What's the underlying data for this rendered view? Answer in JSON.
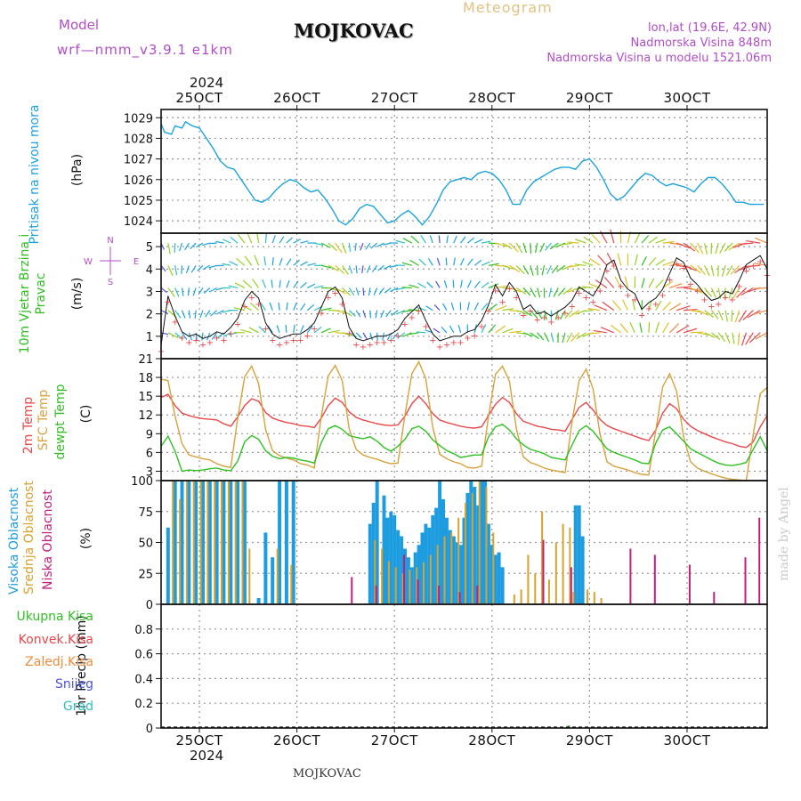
{
  "header": {
    "model_label": "Model",
    "model_name": "wrf—nmm_v3.9.1  e1km",
    "station": "MOJKOVAC",
    "meteogram": "Meteogram",
    "lonlat": "lon,lat (19.6E, 42.9N)",
    "elevation": "Nadmorska Visina 848m",
    "model_elevation": "Nadmorska Visina u modelu 1521.06m",
    "year_top": "2024",
    "year_bottom": "2024",
    "footer_station": "MOJKOVAC",
    "watermark": "made by Angel"
  },
  "colors": {
    "pressure": "#1ca3e0",
    "temp2m": "#e8484a",
    "sfc": "#d9a13c",
    "dewpt": "#2fc022",
    "high_cloud": "#1e9ce0",
    "mid_cloud": "#d8a22e",
    "low_cloud": "#c0207c",
    "label_purple": "#b04ec8",
    "total_precip": "#2fc022"
  },
  "x_axis": {
    "days": [
      "25OCT",
      "26OCT",
      "27OCT",
      "28OCT",
      "29OCT",
      "30OCT"
    ],
    "range_hours": [
      0,
      174
    ]
  },
  "chart_data": [
    {
      "type": "line",
      "panel": "pressure",
      "ylabel_side": "Pritisak na nivou mora",
      "ylabel": "(hPa)",
      "ylim": [
        1023.4,
        1029.4
      ],
      "yticks": [
        1024,
        1025,
        1026,
        1027,
        1028,
        1029
      ],
      "grid": true,
      "series": [
        {
          "name": "Pritisak na nivou mora",
          "x": [
            0,
            1,
            3,
            4,
            6,
            7,
            9,
            11,
            13,
            15,
            17,
            19,
            21,
            23,
            25,
            27,
            29,
            31,
            33,
            35,
            37,
            39,
            41,
            43,
            45,
            47,
            49,
            51,
            53,
            55,
            57,
            59,
            61,
            63,
            65,
            67,
            69,
            71,
            73,
            75,
            77,
            79,
            81,
            83,
            85,
            87,
            89,
            91,
            93,
            95,
            97,
            99,
            101,
            103,
            105,
            107,
            109,
            111,
            113,
            115,
            117,
            119,
            121,
            123,
            125,
            127,
            129,
            131,
            133,
            135,
            137,
            139,
            141,
            143,
            145,
            147,
            149,
            151,
            153,
            155,
            157,
            159,
            161,
            163,
            165,
            167,
            169,
            171,
            173
          ],
          "y": [
            1028.7,
            1028.3,
            1028.2,
            1028.6,
            1028.5,
            1028.8,
            1028.6,
            1028.5,
            1028.0,
            1027.5,
            1026.9,
            1026.6,
            1026.5,
            1026.0,
            1025.5,
            1025.0,
            1024.9,
            1025.1,
            1025.5,
            1025.8,
            1026.0,
            1025.9,
            1025.6,
            1025.4,
            1025.5,
            1025.1,
            1024.6,
            1024.0,
            1023.8,
            1024.1,
            1024.6,
            1024.8,
            1024.7,
            1024.3,
            1023.9,
            1024.0,
            1024.3,
            1024.5,
            1024.2,
            1023.8,
            1024.2,
            1024.8,
            1025.5,
            1025.9,
            1026.0,
            1026.1,
            1026.0,
            1026.3,
            1026.4,
            1026.3,
            1026.0,
            1025.5,
            1024.8,
            1024.8,
            1025.5,
            1025.9,
            1026.1,
            1026.3,
            1026.5,
            1026.6,
            1026.6,
            1026.5,
            1026.9,
            1027.0,
            1026.6,
            1026.0,
            1025.3,
            1025.0,
            1025.2,
            1025.6,
            1026.0,
            1026.3,
            1026.2,
            1025.9,
            1025.7,
            1025.8,
            1025.7,
            1025.6,
            1025.4,
            1025.8,
            1026.1,
            1026.1,
            1025.8,
            1025.4,
            1024.9,
            1024.9,
            1024.8,
            1024.8,
            1024.8
          ]
        }
      ]
    },
    {
      "type": "line",
      "panel": "wind",
      "ylabel_side": "10m Vjetar Brzina i Pravac",
      "ylabel": "(m/s)",
      "compass": {
        "n": "N",
        "s": "S",
        "w": "W",
        "e": "E"
      },
      "ylim": [
        0,
        5.6
      ],
      "yticks": [
        1,
        2,
        3,
        4,
        5
      ],
      "grid": true,
      "series": [
        {
          "name": "Brzina",
          "x": [
            0,
            2,
            4,
            6,
            8,
            10,
            12,
            14,
            16,
            18,
            20,
            22,
            24,
            26,
            28,
            30,
            32,
            34,
            36,
            38,
            40,
            42,
            44,
            46,
            48,
            50,
            52,
            54,
            56,
            58,
            60,
            62,
            64,
            66,
            68,
            70,
            72,
            74,
            76,
            78,
            80,
            82,
            84,
            86,
            88,
            90,
            92,
            94,
            96,
            98,
            100,
            102,
            104,
            106,
            108,
            110,
            112,
            114,
            116,
            118,
            120,
            122,
            124,
            126,
            128,
            130,
            132,
            134,
            136,
            138,
            140,
            142,
            144,
            146,
            148,
            150,
            152,
            154,
            156,
            158,
            160,
            162,
            164,
            166,
            168,
            170,
            172,
            174
          ],
          "y": [
            0.6,
            2.8,
            1.9,
            1.2,
            1.0,
            1.1,
            0.9,
            1.0,
            1.2,
            1.1,
            1.4,
            1.8,
            2.6,
            3.0,
            2.7,
            1.6,
            1.1,
            0.9,
            1.0,
            1.1,
            1.1,
            1.3,
            1.6,
            2.3,
            3.0,
            3.2,
            2.7,
            1.4,
            0.9,
            0.8,
            0.9,
            1.0,
            1.0,
            1.1,
            1.3,
            1.8,
            2.1,
            2.4,
            1.7,
            1.1,
            0.8,
            0.9,
            1.0,
            1.0,
            1.2,
            1.3,
            1.7,
            2.4,
            3.3,
            2.8,
            3.4,
            3.0,
            2.2,
            2.4,
            2.0,
            2.1,
            1.9,
            2.1,
            2.3,
            2.6,
            3.2,
            3.0,
            2.8,
            3.3,
            4.2,
            4.4,
            3.5,
            3.1,
            2.9,
            2.2,
            2.5,
            2.7,
            3.1,
            3.8,
            4.5,
            4.3,
            3.6,
            3.3,
            2.9,
            2.6,
            2.7,
            3.0,
            2.9,
            3.5,
            4.2,
            4.4,
            4.6,
            4.0
          ]
        }
      ]
    },
    {
      "type": "line",
      "panel": "temperature",
      "ylabel_side": [
        "2m Temp",
        "SFC Temp",
        "dewpt Temp"
      ],
      "ylabel": "(C)",
      "ylim": [
        1.5,
        21
      ],
      "yticks": [
        3,
        6,
        9,
        12,
        15,
        18,
        21
      ],
      "grid": true,
      "x": [
        0,
        2,
        4,
        6,
        8,
        10,
        12,
        14,
        16,
        18,
        20,
        22,
        24,
        26,
        28,
        30,
        32,
        34,
        36,
        38,
        40,
        42,
        44,
        46,
        48,
        50,
        52,
        54,
        56,
        58,
        60,
        62,
        64,
        66,
        68,
        70,
        72,
        74,
        76,
        78,
        80,
        82,
        84,
        86,
        88,
        90,
        92,
        94,
        96,
        98,
        100,
        102,
        104,
        106,
        108,
        110,
        112,
        114,
        116,
        118,
        120,
        122,
        124,
        126,
        128,
        130,
        132,
        134,
        136,
        138,
        140,
        142,
        144,
        146,
        148,
        150,
        152,
        154,
        156,
        158,
        160,
        162,
        164,
        166,
        168,
        170,
        172,
        174
      ],
      "series": [
        {
          "name": "2m Temp",
          "values": [
            14.8,
            15.3,
            13.5,
            12.3,
            11.9,
            11.6,
            11.4,
            11.3,
            11.2,
            10.6,
            10.2,
            11.7,
            13.5,
            14.6,
            14.2,
            12.4,
            11.5,
            11.1,
            10.8,
            10.6,
            10.3,
            10.2,
            10.0,
            11.5,
            13.5,
            14.7,
            14.0,
            12.5,
            11.6,
            11.2,
            10.9,
            10.6,
            10.4,
            10.3,
            10.4,
            11.8,
            13.8,
            15.0,
            13.8,
            12.2,
            11.2,
            10.8,
            10.5,
            10.2,
            10.0,
            9.9,
            10.1,
            11.9,
            13.7,
            14.8,
            14.0,
            12.2,
            11.0,
            10.6,
            10.2,
            10.0,
            9.7,
            9.6,
            9.4,
            11.3,
            13.2,
            14.0,
            12.8,
            11.3,
            10.3,
            9.8,
            9.4,
            9.0,
            8.6,
            8.2,
            7.9,
            9.6,
            12.3,
            13.8,
            13.0,
            11.3,
            10.2,
            9.5,
            9.0,
            8.5,
            8.1,
            7.7,
            7.4,
            7.0,
            6.8,
            7.7,
            10.1,
            11.9
          ]
        },
        {
          "name": "SFC Temp",
          "values": [
            17.7,
            17.5,
            11.8,
            7.4,
            5.6,
            5.3,
            5.0,
            4.8,
            4.2,
            3.8,
            3.6,
            11.5,
            18.1,
            19.8,
            17.0,
            9.7,
            6.3,
            5.5,
            5.1,
            4.8,
            4.2,
            4.0,
            3.5,
            11.8,
            18.3,
            19.9,
            17.5,
            9.8,
            6.5,
            5.6,
            5.2,
            4.9,
            4.5,
            4.2,
            4.3,
            12.0,
            18.6,
            20.5,
            17.8,
            10.0,
            5.7,
            5.0,
            4.5,
            4.2,
            3.6,
            3.5,
            3.8,
            11.8,
            18.5,
            19.8,
            17.4,
            9.8,
            5.3,
            4.4,
            4.0,
            3.5,
            3.2,
            3.0,
            2.8,
            11.0,
            17.5,
            19.3,
            16.2,
            9.0,
            4.5,
            3.8,
            3.5,
            3.2,
            2.8,
            2.5,
            2.4,
            9.5,
            16.5,
            18.6,
            15.8,
            8.5,
            4.5,
            3.5,
            3.0,
            2.6,
            2.2,
            1.9,
            1.7,
            1.6,
            1.5,
            8.9,
            15.4,
            16.4
          ]
        },
        {
          "name": "dewpt Temp",
          "values": [
            7.0,
            8.6,
            6.2,
            3.0,
            3.2,
            3.1,
            3.2,
            3.4,
            3.5,
            3.2,
            3.1,
            4.6,
            7.7,
            8.7,
            8.1,
            6.3,
            5.4,
            5.0,
            5.2,
            5.1,
            4.8,
            4.6,
            4.3,
            7.6,
            9.8,
            10.3,
            9.7,
            8.7,
            8.4,
            8.2,
            8.5,
            7.8,
            6.8,
            6.2,
            7.0,
            8.1,
            9.8,
            10.2,
            9.4,
            8.0,
            7.1,
            6.3,
            5.8,
            5.2,
            5.4,
            5.6,
            5.6,
            8.5,
            10.1,
            10.5,
            9.6,
            8.2,
            7.2,
            6.5,
            6.2,
            5.8,
            5.2,
            5.0,
            4.8,
            7.2,
            9.5,
            10.3,
            9.4,
            8.0,
            6.6,
            6.0,
            5.6,
            5.2,
            4.8,
            4.3,
            4.2,
            7.5,
            9.6,
            10.1,
            9.0,
            7.8,
            6.6,
            6.0,
            5.4,
            4.8,
            4.3,
            4.0,
            3.9,
            4.1,
            4.4,
            6.5,
            8.5,
            6.3
          ]
        }
      ]
    },
    {
      "type": "bar",
      "panel": "clouds",
      "ylabel_side": [
        "Visoka Oblacnost",
        "Srednja Oblacnost",
        "Niska Oblacnost"
      ],
      "ylabel": "(%)",
      "ylim": [
        0,
        100
      ],
      "yticks": [
        0,
        25,
        50,
        75,
        100
      ],
      "grid": true,
      "series": [
        {
          "name": "Visoka Oblacnost",
          "x": [
            2,
            4,
            6,
            8,
            10,
            12,
            14,
            16,
            18,
            20,
            22,
            24,
            28,
            30,
            32,
            34,
            36,
            38,
            60,
            61,
            62,
            64,
            65,
            66,
            67,
            68,
            69,
            70,
            71,
            72,
            73,
            74,
            75,
            76,
            77,
            78,
            79,
            80,
            81,
            82,
            83,
            84,
            85,
            86,
            87,
            88,
            89,
            90,
            91,
            92,
            93,
            94,
            95,
            96,
            97,
            98,
            119,
            120,
            121
          ],
          "values": [
            62,
            100,
            100,
            100,
            100,
            100,
            100,
            100,
            100,
            100,
            100,
            100,
            5,
            58,
            38,
            100,
            100,
            100,
            65,
            82,
            100,
            88,
            70,
            75,
            72,
            60,
            55,
            45,
            38,
            30,
            42,
            48,
            58,
            65,
            62,
            72,
            78,
            100,
            85,
            70,
            60,
            55,
            50,
            48,
            70,
            90,
            100,
            95,
            80,
            100,
            100,
            65,
            48,
            40,
            42,
            30,
            80,
            80,
            55
          ]
        },
        {
          "name": "Srednja Oblacnost",
          "x": [
            3,
            5,
            7,
            9,
            11,
            13,
            15,
            17,
            19,
            21,
            23,
            25,
            33,
            37,
            61,
            63,
            65,
            67,
            69,
            71,
            73,
            75,
            77,
            79,
            81,
            83,
            85,
            87,
            89,
            91,
            93,
            95,
            101,
            103,
            105,
            107,
            109,
            111,
            113,
            115,
            117,
            118,
            122,
            124,
            126
          ],
          "values": [
            100,
            85,
            100,
            100,
            100,
            100,
            100,
            100,
            100,
            100,
            100,
            45,
            45,
            32,
            52,
            45,
            35,
            30,
            25,
            28,
            30,
            34,
            40,
            48,
            55,
            58,
            70,
            82,
            90,
            100,
            95,
            58,
            8,
            12,
            40,
            25,
            75,
            20,
            50,
            65,
            62,
            10,
            12,
            10,
            5
          ]
        },
        {
          "name": "Niska Oblacnost",
          "x": [
            55,
            62,
            70,
            74,
            80,
            86,
            91,
            110,
            118,
            135,
            142,
            152,
            159,
            168,
            172
          ],
          "values": [
            22,
            15,
            40,
            20,
            15,
            10,
            15,
            52,
            30,
            45,
            40,
            32,
            10,
            38,
            70
          ]
        }
      ]
    },
    {
      "type": "bar",
      "panel": "precip",
      "ylabel": "1hr Precip (mm)",
      "ylim": [
        0,
        1.0
      ],
      "yticks": [
        0,
        0.2,
        0.4,
        0.6,
        0.8
      ],
      "grid": true,
      "legend": [
        "Ukupna Kisa",
        "Konvek.Kisa",
        "Zaledj.Kisa",
        "Snijeg",
        "Grad"
      ],
      "legend_colors": [
        "#2fc022",
        "#e8484a",
        "#ef8c3c",
        "#4a52e0",
        "#2ec0c0"
      ],
      "series": [
        {
          "name": "Ukupna Kisa",
          "x": [
            117
          ],
          "values": [
            0.02
          ]
        }
      ]
    }
  ]
}
